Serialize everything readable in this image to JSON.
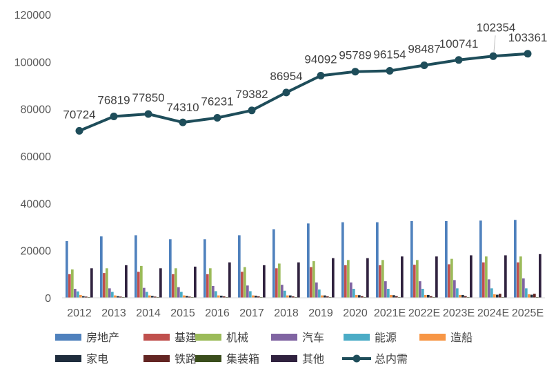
{
  "chart_data": {
    "type": "bar+line",
    "title": "",
    "xlabel": "",
    "ylabel": "",
    "ylim": [
      0,
      120000
    ],
    "yticks": [
      "0",
      "20000",
      "40000",
      "60000",
      "80000",
      "100000",
      "120000"
    ],
    "categories": [
      "2012",
      "2013",
      "2014",
      "2015",
      "2016",
      "2017",
      "2018",
      "2019",
      "2020",
      "2021E",
      "2022E",
      "2023E",
      "2024E",
      "2025E"
    ],
    "grid": false,
    "legend_position": "bottom",
    "bar_series": [
      {
        "name": "房地产",
        "color": "#4f81bd",
        "values": [
          24000,
          26000,
          26500,
          24800,
          24800,
          26500,
          29000,
          31500,
          32000,
          32000,
          32500,
          32500,
          32700,
          33000
        ]
      },
      {
        "name": "基建",
        "color": "#c0504d",
        "values": [
          10000,
          10500,
          11000,
          10000,
          10000,
          11000,
          12500,
          13000,
          13800,
          13800,
          14000,
          14200,
          15000,
          15000
        ]
      },
      {
        "name": "机械",
        "color": "#9bbb59",
        "values": [
          12000,
          12500,
          13500,
          12500,
          12500,
          13000,
          14500,
          15500,
          16000,
          16000,
          16000,
          16500,
          17500,
          17500
        ]
      },
      {
        "name": "汽车",
        "color": "#8064a2",
        "values": [
          3800,
          4000,
          4200,
          4500,
          5000,
          5200,
          5500,
          6500,
          6500,
          7000,
          7000,
          7500,
          7800,
          8200
        ]
      },
      {
        "name": "能源",
        "color": "#4bacc6",
        "values": [
          2700,
          2500,
          2500,
          2500,
          2800,
          2800,
          3000,
          3500,
          3800,
          3800,
          3800,
          4000,
          4000,
          4000
        ]
      },
      {
        "name": "造船",
        "color": "#f79646",
        "values": [
          1200,
          1000,
          1000,
          1000,
          1000,
          1000,
          1000,
          1000,
          1200,
          1200,
          1200,
          1200,
          1500,
          1500
        ]
      },
      {
        "name": "家电",
        "color": "#1f2d3d",
        "values": [
          700,
          700,
          800,
          800,
          900,
          900,
          1000,
          1000,
          1100,
          1100,
          1200,
          1200,
          1300,
          1300
        ]
      },
      {
        "name": "铁路",
        "color": "#632523",
        "values": [
          500,
          500,
          500,
          500,
          600,
          600,
          600,
          600,
          700,
          700,
          700,
          700,
          1700,
          1700
        ]
      },
      {
        "name": "集装箱",
        "color": "#3a4d1c",
        "values": [
          300,
          300,
          300,
          300,
          300,
          300,
          300,
          300,
          300,
          300,
          300,
          300,
          300,
          300
        ]
      },
      {
        "name": "其他",
        "color": "#30223f",
        "values": [
          12500,
          13800,
          12500,
          13200,
          15000,
          13800,
          15000,
          16800,
          16800,
          17500,
          17500,
          18000,
          18000,
          18500
        ]
      }
    ],
    "line_series": {
      "name": "总内需",
      "color": "#1e4d5a",
      "values": [
        70724,
        76819,
        77850,
        74310,
        76231,
        79382,
        86954,
        94092,
        95789,
        96154,
        98487,
        100741,
        102354,
        103361
      ],
      "labels": [
        "70724",
        "76819",
        "77850",
        "74310",
        "76231",
        "79382",
        "86954",
        "94092",
        "95789",
        "96154",
        "98487",
        "100741",
        "102354",
        "103361"
      ]
    }
  }
}
